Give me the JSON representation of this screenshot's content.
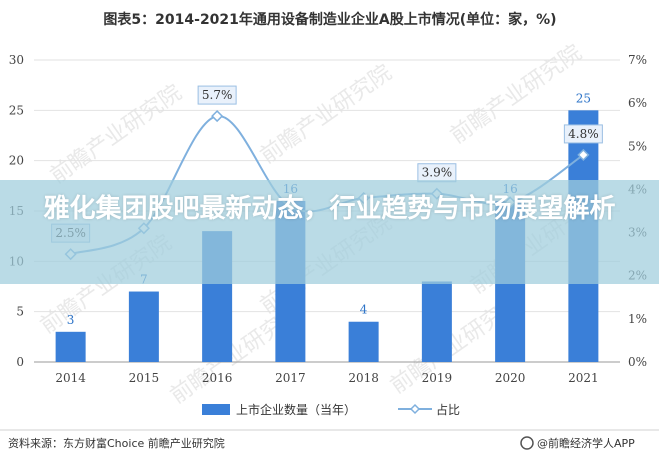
{
  "chart_data": {
    "type": "bar+line",
    "title": "图表5：2014-2021年通用设备制造业企业A股上市情况(单位：家，%)",
    "categories": [
      "2014",
      "2015",
      "2016",
      "2017",
      "2018",
      "2019",
      "2020",
      "2021"
    ],
    "series": [
      {
        "name": "上市企业数量（当年）",
        "axis": "left",
        "kind": "bar",
        "values": [
          3,
          7,
          13,
          16,
          4,
          8,
          16,
          25
        ],
        "labels": [
          "3",
          "7",
          "",
          "16",
          "4",
          "",
          "16",
          "25"
        ]
      },
      {
        "name": "占比",
        "axis": "right",
        "kind": "line",
        "values": [
          2.5,
          3.1,
          5.7,
          3.6,
          3.8,
          3.9,
          3.7,
          4.8
        ],
        "labels": [
          "2.5%",
          "",
          "5.7%",
          "",
          "",
          "3.9%",
          "",
          "4.8%"
        ]
      }
    ],
    "left_axis": {
      "min": 0,
      "max": 30,
      "ticks": [
        "0",
        "5",
        "10",
        "15",
        "20",
        "25",
        "30"
      ]
    },
    "right_axis": {
      "min": 0,
      "max": 7,
      "ticks": [
        "0%",
        "1%",
        "2%",
        "3%",
        "4%",
        "5%",
        "6%",
        "7%"
      ]
    },
    "grid": true,
    "legend_position": "bottom-center",
    "colors": {
      "bar": "#3a7fd8",
      "line": "#7fb0de",
      "marker_fill": "#ffffff"
    }
  },
  "source": "资料来源：东方财富Choice 前瞻产业研究院",
  "brand": "@前瞻经济学人APP",
  "watermark": "前瞻产业研究院",
  "overlay_title": "雅化集团股吧最新动态，行业趋势与市场展望解析"
}
